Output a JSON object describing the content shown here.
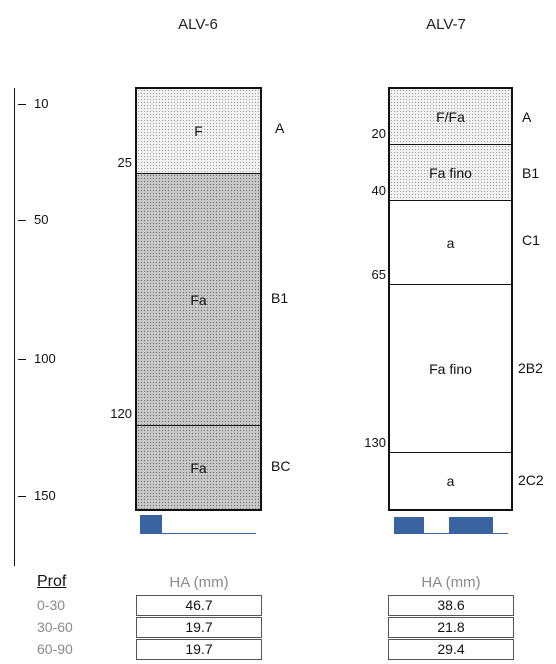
{
  "columns": [
    {
      "name": "ALV-6",
      "layers": [
        {
          "label": "F",
          "horizon": "A",
          "top_depth": "",
          "texture": "light"
        },
        {
          "label": "Fa",
          "horizon": "B1",
          "top_depth": "25",
          "texture": "dark"
        },
        {
          "label": "Fa",
          "horizon": "BC",
          "top_depth": "120",
          "texture": "dark"
        }
      ]
    },
    {
      "name": "ALV-7",
      "layers": [
        {
          "label": "F/Fa",
          "horizon": "A",
          "top_depth": "",
          "texture": "light"
        },
        {
          "label": "Fa fino",
          "horizon": "B1",
          "top_depth": "20",
          "texture": "light"
        },
        {
          "label": "a",
          "horizon": "C1",
          "top_depth": "40",
          "texture": "none"
        },
        {
          "label": "Fa fino",
          "horizon": "2B2",
          "top_depth": "65",
          "texture": "none"
        },
        {
          "label": "a",
          "horizon": "2C2",
          "top_depth": "130",
          "texture": "none"
        }
      ]
    }
  ],
  "depth_scale": [
    "10",
    "50",
    "100",
    "150"
  ],
  "table": {
    "prof_header": "Prof",
    "ha_header": "HA (mm)",
    "rows": [
      {
        "prof": "0-30",
        "alv6": "46.7",
        "alv7": "38.6"
      },
      {
        "prof": "30-60",
        "alv6": "19.7",
        "alv7": "21.8"
      },
      {
        "prof": "60-90",
        "alv6": "19.7",
        "alv7": "29.4"
      }
    ]
  },
  "colors": {
    "accent_bar": "#3a64a0",
    "line": "#111111",
    "muted_text": "#8a8a8a"
  }
}
